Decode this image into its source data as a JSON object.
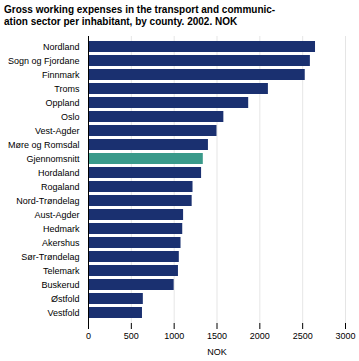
{
  "chart_data": {
    "type": "bar",
    "orientation": "horizontal",
    "title": "Gross working expenses in the transport and communic-\nation sector per inhabitant, by county. 2002. NOK",
    "xlabel": "NOK",
    "categories": [
      "Nordland",
      "Sogn og Fjordane",
      "Finnmark",
      "Troms",
      "Oppland",
      "Oslo",
      "Vest-Agder",
      "Møre og Romsdal",
      "Gjennomsnitt",
      "Hordaland",
      "Rogaland",
      "Nord-Trøndelag",
      "Aust-Agder",
      "Hedmark",
      "Akershus",
      "Sør-Trøndelag",
      "Telemark",
      "Buskerud",
      "Østfold",
      "Vestfold"
    ],
    "values": [
      2650,
      2590,
      2530,
      2100,
      1870,
      1580,
      1500,
      1400,
      1340,
      1320,
      1220,
      1210,
      1110,
      1100,
      1080,
      1060,
      1050,
      1000,
      640,
      630
    ],
    "colors": [
      "#1a3070",
      "#1a3070",
      "#1a3070",
      "#1a3070",
      "#1a3070",
      "#1a3070",
      "#1a3070",
      "#1a3070",
      "#3a9a8a",
      "#1a3070",
      "#1a3070",
      "#1a3070",
      "#1a3070",
      "#1a3070",
      "#1a3070",
      "#1a3070",
      "#1a3070",
      "#1a3070",
      "#1a3070",
      "#1a3070"
    ],
    "xlim": [
      0,
      3000
    ],
    "xticks": [
      0,
      500,
      1000,
      1500,
      2000,
      2500,
      3000
    ],
    "grid": true
  }
}
